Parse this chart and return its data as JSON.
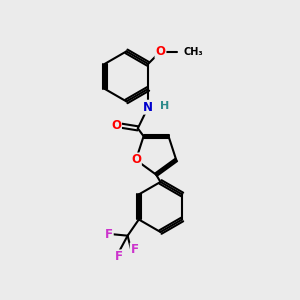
{
  "background_color": "#ebebeb",
  "bond_color": "#000000",
  "bond_width": 1.5,
  "atom_colors": {
    "O": "#ff0000",
    "N": "#0000cd",
    "F": "#cc33cc",
    "H": "#2e8b8b",
    "C": "#000000"
  },
  "font_size_atoms": 8.5,
  "font_size_h": 8.0,
  "font_size_small": 7.0
}
